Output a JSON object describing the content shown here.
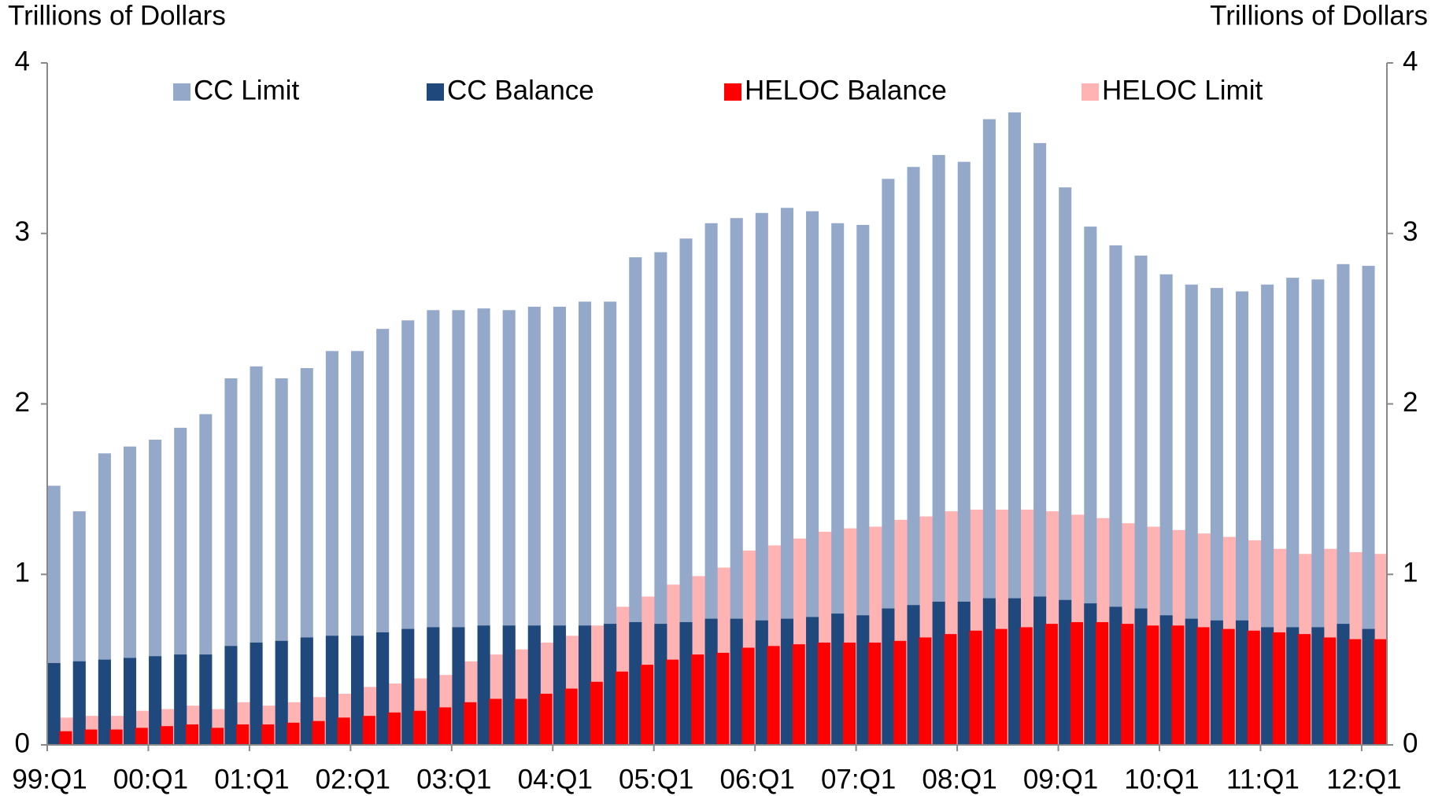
{
  "chart_data": {
    "type": "overlapped-bar",
    "y_label": "Trillions of Dollars",
    "y2_label": "Trillions of Dollars",
    "categories": [
      "99:Q1",
      null,
      null,
      null,
      "00:Q1",
      null,
      null,
      null,
      "01:Q1",
      null,
      null,
      null,
      "02:Q1",
      null,
      null,
      null,
      "03:Q1",
      null,
      null,
      null,
      "04:Q1",
      null,
      null,
      null,
      "05:Q1",
      null,
      null,
      null,
      "06:Q1",
      null,
      null,
      null,
      "07:Q1",
      null,
      null,
      null,
      "08:Q1",
      null,
      null,
      null,
      "09:Q1",
      null,
      null,
      null,
      "10:Q1",
      null,
      null,
      null,
      "11:Q1",
      null,
      null,
      null,
      "12:Q1"
    ],
    "series": [
      {
        "name": "CC Limit",
        "color": "#94a9c9",
        "values": [
          1.52,
          1.37,
          1.71,
          1.75,
          1.79,
          1.86,
          1.94,
          2.15,
          2.22,
          2.15,
          2.21,
          2.31,
          2.31,
          2.44,
          2.49,
          2.55,
          2.55,
          2.56,
          2.55,
          2.57,
          2.57,
          2.6,
          2.6,
          2.86,
          2.89,
          2.97,
          3.06,
          3.09,
          3.12,
          3.15,
          3.13,
          3.06,
          3.05,
          3.32,
          3.39,
          3.46,
          3.42,
          3.67,
          3.71,
          3.53,
          3.27,
          3.04,
          2.93,
          2.87,
          2.76,
          2.7,
          2.68,
          2.66,
          2.7,
          2.74,
          2.73,
          2.82,
          2.81
        ]
      },
      {
        "name": "CC Balance",
        "color": "#1f497d",
        "values": [
          0.48,
          0.49,
          0.5,
          0.51,
          0.52,
          0.53,
          0.53,
          0.58,
          0.6,
          0.61,
          0.63,
          0.64,
          0.64,
          0.66,
          0.68,
          0.69,
          0.69,
          0.7,
          0.7,
          0.7,
          0.7,
          0.7,
          0.71,
          0.72,
          0.71,
          0.72,
          0.74,
          0.74,
          0.73,
          0.74,
          0.75,
          0.77,
          0.76,
          0.8,
          0.82,
          0.84,
          0.84,
          0.86,
          0.86,
          0.87,
          0.85,
          0.83,
          0.81,
          0.8,
          0.76,
          0.74,
          0.73,
          0.73,
          0.69,
          0.69,
          0.69,
          0.71,
          0.68
        ]
      },
      {
        "name": "HELOC Balance",
        "color": "#ff0000",
        "values": [
          0.08,
          0.09,
          0.09,
          0.1,
          0.11,
          0.12,
          0.1,
          0.12,
          0.12,
          0.13,
          0.14,
          0.16,
          0.17,
          0.19,
          0.2,
          0.22,
          0.25,
          0.27,
          0.27,
          0.3,
          0.33,
          0.37,
          0.43,
          0.47,
          0.5,
          0.53,
          0.54,
          0.57,
          0.58,
          0.59,
          0.6,
          0.6,
          0.6,
          0.61,
          0.63,
          0.65,
          0.67,
          0.68,
          0.69,
          0.71,
          0.72,
          0.72,
          0.71,
          0.7,
          0.7,
          0.69,
          0.68,
          0.67,
          0.66,
          0.65,
          0.63,
          0.62,
          0.62
        ]
      },
      {
        "name": "HELOC Limit",
        "color": "#ffb3b3",
        "values": [
          0.16,
          0.17,
          0.17,
          0.2,
          0.21,
          0.23,
          0.21,
          0.25,
          0.23,
          0.25,
          0.28,
          0.3,
          0.34,
          0.36,
          0.39,
          0.41,
          0.49,
          0.53,
          0.56,
          0.6,
          0.64,
          0.7,
          0.81,
          0.87,
          0.94,
          0.99,
          1.04,
          1.14,
          1.17,
          1.21,
          1.25,
          1.27,
          1.28,
          1.32,
          1.34,
          1.37,
          1.38,
          1.38,
          1.38,
          1.37,
          1.35,
          1.33,
          1.3,
          1.28,
          1.26,
          1.24,
          1.22,
          1.2,
          1.15,
          1.12,
          1.15,
          1.13,
          1.12
        ]
      }
    ],
    "ylim": [
      0,
      4
    ],
    "yticks": [
      0,
      1,
      2,
      3,
      4
    ],
    "y2lim": [
      0,
      4
    ],
    "y2ticks": [
      0,
      1,
      2,
      3,
      4
    ],
    "legend": "top"
  }
}
